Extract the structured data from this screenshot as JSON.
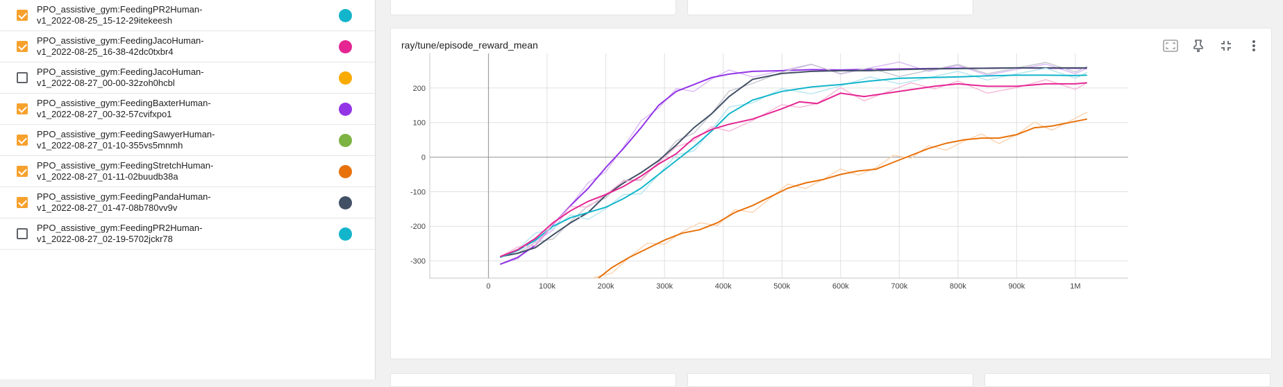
{
  "runs": [
    {
      "line1": "PPO_assistive_gym:FeedingPR2Human-",
      "line2": "v1_2022-08-25_15-12-29itekeesh",
      "checked": true,
      "color": "#12b5cb"
    },
    {
      "line1": "PPO_assistive_gym:FeedingJacoHuman-",
      "line2": "v1_2022-08-25_16-38-42dc0txbr4",
      "checked": true,
      "color": "#e52592"
    },
    {
      "line1": "PPO_assistive_gym:FeedingJacoHuman-",
      "line2": "v1_2022-08-27_00-00-32zoh0hcbl",
      "checked": false,
      "color": "#f9ab00"
    },
    {
      "line1": "PPO_assistive_gym:FeedingBaxterHuman-",
      "line2": "v1_2022-08-27_00-32-57cvifxpo1",
      "checked": true,
      "color": "#9334e6"
    },
    {
      "line1": "PPO_assistive_gym:FeedingSawyerHuman-",
      "line2": "v1_2022-08-27_01-10-355vs5mnmh",
      "checked": true,
      "color": "#7cb342"
    },
    {
      "line1": "PPO_assistive_gym:FeedingStretchHuman-",
      "line2": "v1_2022-08-27_01-11-02buudb38a",
      "checked": true,
      "color": "#e8710a"
    },
    {
      "line1": "PPO_assistive_gym:FeedingPandaHuman-",
      "line2": "v1_2022-08-27_01-47-08b780vv9v",
      "checked": true,
      "color": "#425066"
    },
    {
      "line1": "PPO_assistive_gym:FeedingPR2Human-",
      "line2": "v1_2022-08-27_02-19-5702jckr78",
      "checked": false,
      "color": "#12b5cb"
    }
  ],
  "card": {
    "title": "ray/tune/episode_reward_mean",
    "tool_icons": [
      "fit-domain-icon",
      "pin-icon",
      "collapse-icon",
      "more-vert-icon"
    ]
  },
  "chart_data": {
    "type": "line",
    "title": "ray/tune/episode_reward_mean",
    "xlabel": "",
    "ylabel": "",
    "xlim": [
      -100000,
      1090000
    ],
    "ylim": [
      -350,
      300
    ],
    "x_ticks": [
      0,
      100000,
      200000,
      300000,
      400000,
      500000,
      600000,
      700000,
      800000,
      900000,
      1000000
    ],
    "x_tick_labels": [
      "0",
      "100k",
      "200k",
      "300k",
      "400k",
      "500k",
      "600k",
      "700k",
      "800k",
      "900k",
      "1M"
    ],
    "y_ticks": [
      -300,
      -200,
      -100,
      0,
      100,
      200
    ],
    "y_tick_labels": [
      "-300",
      "-200",
      "-100",
      "0",
      "100",
      "200"
    ],
    "grid": true,
    "smoothing_shadows": true,
    "series": [
      {
        "color": "#9334e6",
        "raw_color": "#d9b8f5",
        "x": [
          20000,
          50000,
          80000,
          110000,
          140000,
          170000,
          200000,
          230000,
          260000,
          290000,
          320000,
          350000,
          380000,
          410000,
          450000,
          500000,
          550000,
          600000,
          650000,
          700000,
          750000,
          800000,
          850000,
          900000,
          950000,
          1000000,
          1020000
        ],
        "values": [
          -310,
          -290,
          -255,
          -195,
          -140,
          -90,
          -30,
          25,
          85,
          150,
          190,
          210,
          230,
          240,
          248,
          250,
          253,
          252,
          254,
          255,
          256,
          257,
          257,
          258,
          257,
          257,
          257
        ]
      },
      {
        "color": "#425066",
        "raw_color": "#c5c5cf",
        "x": [
          20000,
          50000,
          80000,
          110000,
          140000,
          170000,
          200000,
          230000,
          260000,
          290000,
          320000,
          350000,
          380000,
          410000,
          450000,
          500000,
          550000,
          600000,
          650000,
          700000,
          750000,
          800000,
          850000,
          900000,
          950000,
          1000000,
          1020000
        ],
        "values": [
          -288,
          -278,
          -262,
          -225,
          -190,
          -160,
          -110,
          -75,
          -45,
          -10,
          35,
          85,
          125,
          175,
          225,
          242,
          248,
          250,
          250,
          253,
          255,
          256,
          257,
          258,
          258,
          258,
          258
        ]
      },
      {
        "color": "#12b5cb",
        "raw_color": "#b5e6ee",
        "x": [
          20000,
          50000,
          80000,
          110000,
          140000,
          170000,
          200000,
          230000,
          260000,
          290000,
          320000,
          350000,
          380000,
          410000,
          450000,
          500000,
          550000,
          600000,
          650000,
          700000,
          750000,
          800000,
          850000,
          900000,
          950000,
          1000000,
          1020000
        ],
        "values": [
          -290,
          -270,
          -240,
          -200,
          -175,
          -160,
          -145,
          -120,
          -90,
          -50,
          -10,
          30,
          75,
          125,
          165,
          190,
          203,
          210,
          220,
          228,
          230,
          232,
          235,
          237,
          237,
          236,
          237
        ]
      },
      {
        "color": "#e52592",
        "raw_color": "#f6b7d8",
        "x": [
          20000,
          50000,
          80000,
          110000,
          140000,
          170000,
          200000,
          230000,
          260000,
          290000,
          320000,
          350000,
          380000,
          410000,
          450000,
          500000,
          530000,
          560000,
          600000,
          640000,
          680000,
          720000,
          760000,
          800000,
          850000,
          900000,
          950000,
          1000000,
          1020000
        ],
        "values": [
          -288,
          -268,
          -235,
          -190,
          -155,
          -128,
          -108,
          -85,
          -55,
          -20,
          10,
          55,
          80,
          95,
          110,
          140,
          160,
          155,
          185,
          175,
          185,
          195,
          205,
          212,
          205,
          205,
          212,
          212,
          215
        ]
      },
      {
        "color": "#e8710a",
        "raw_color": "#fbd3b0",
        "x": [
          150000,
          180000,
          210000,
          240000,
          270000,
          300000,
          330000,
          360000,
          390000,
          420000,
          450000,
          480000,
          510000,
          540000,
          570000,
          600000,
          630000,
          660000,
          690000,
          720000,
          750000,
          780000,
          810000,
          840000,
          870000,
          900000,
          930000,
          960000,
          990000,
          1020000
        ],
        "values": [
          -400,
          -360,
          -320,
          -290,
          -265,
          -240,
          -220,
          -210,
          -190,
          -160,
          -140,
          -115,
          -90,
          -75,
          -65,
          -50,
          -40,
          -35,
          -15,
          5,
          25,
          40,
          50,
          55,
          55,
          65,
          85,
          90,
          100,
          110
        ]
      }
    ]
  }
}
